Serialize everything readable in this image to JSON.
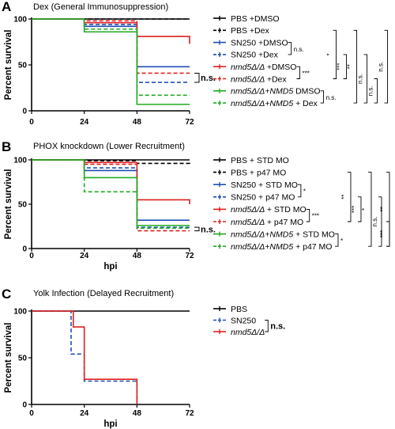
{
  "panels": [
    {
      "letter": "A",
      "title": "Dex (General Immunosuppression)",
      "xlabel": "",
      "ylabel": "Percent survival",
      "ns_label": "n.s.",
      "legend": [
        {
          "label": "PBS +DMSO"
        },
        {
          "label": "PBS +Dex"
        },
        {
          "label": "SN250 +DMSO"
        },
        {
          "label": "SN250 +Dex"
        },
        {
          "label": "+DMSO",
          "italic_prefix": "nmd5Δ/Δ "
        },
        {
          "label": "+Dex",
          "italic_prefix": "nmd5Δ/Δ "
        },
        {
          "label": " DMSO",
          "italic_prefix": "nmd5Δ/Δ+NMD5"
        },
        {
          "label": " + Dex",
          "italic_prefix": "nmd5Δ/Δ+NMD5"
        }
      ],
      "brackets": [
        {
          "pair": [
            2,
            3
          ],
          "label": "n.s."
        },
        {
          "pair": [
            4,
            5
          ],
          "label": "***"
        },
        {
          "pair": [
            6,
            7
          ],
          "label": "n.s."
        },
        {
          "pair": [
            1,
            5
          ],
          "label": "*"
        },
        {
          "pair": [
            3,
            5
          ],
          "label": "***"
        },
        {
          "pair": [
            1,
            7
          ],
          "label": "**"
        },
        {
          "pair": [
            3,
            7
          ],
          "label": "n.s."
        },
        {
          "pair": [
            5,
            7
          ],
          "label": "n.s."
        },
        {
          "pair": [
            1,
            7
          ],
          "label": "n.s."
        }
      ]
    },
    {
      "letter": "B",
      "title": "PHOX knockdown (Lower Recruitment)",
      "xlabel": "hpi",
      "ylabel": "Percent survival",
      "ns_label": "n.s.",
      "legend": [
        {
          "label": "PBS + STD MO"
        },
        {
          "label": "PBS + p47 MO"
        },
        {
          "label": "SN250 + STD MO"
        },
        {
          "label": "SN250 + p47 MO"
        },
        {
          "label": "+ STD MO",
          "italic_prefix": "nmd5Δ/Δ "
        },
        {
          "label": "+ p47 MO",
          "italic_prefix": "nmd5Δ/Δ "
        },
        {
          "label": " + STD MO",
          "italic_prefix": "nmd5Δ/Δ+NMD5"
        },
        {
          "label": " + p47 MO",
          "italic_prefix": "nmd5Δ/Δ+NMD5"
        }
      ],
      "brackets": [
        {
          "pair": [
            2,
            3
          ],
          "label": "*"
        },
        {
          "pair": [
            4,
            5
          ],
          "label": "***"
        },
        {
          "pair": [
            6,
            7
          ],
          "label": "*"
        },
        {
          "pair": [
            1,
            5
          ],
          "label": "**"
        },
        {
          "pair": [
            3,
            5
          ],
          "label": "***"
        },
        {
          "pair": [
            1,
            7
          ],
          "label": "*"
        },
        {
          "pair": [
            3,
            7
          ],
          "label": "n.s."
        },
        {
          "pair": [
            5,
            7
          ],
          "label": "***"
        },
        {
          "pair": [
            1,
            7
          ],
          "label": "**"
        }
      ]
    },
    {
      "letter": "C",
      "title": "Yolk Infection (Delayed Recruitment)",
      "xlabel": "hpi",
      "ylabel": "Percent survival",
      "ns_label": "",
      "legend": [
        {
          "label": "PBS"
        },
        {
          "label": "SN250"
        },
        {
          "label": "",
          "italic_prefix": "nmd5Δ/Δ"
        }
      ],
      "brackets": [
        {
          "pair": [
            1,
            2
          ],
          "label": "n.s."
        }
      ]
    }
  ],
  "chart_data": [
    {
      "type": "line",
      "step": true,
      "title": "Dex (General Immunosuppression)",
      "xlabel": "",
      "ylabel": "Percent survival",
      "xlim": [
        0,
        72
      ],
      "ylim": [
        0,
        100
      ],
      "xticks": [
        0,
        24,
        48,
        72
      ],
      "yticks": [
        0,
        50,
        100
      ],
      "series": [
        {
          "name": "PBS +DMSO",
          "color": "#000000",
          "dashed": false,
          "x": [
            0,
            72
          ],
          "y": [
            100,
            100
          ]
        },
        {
          "name": "PBS +Dex",
          "color": "#000000",
          "dashed": true,
          "x": [
            0,
            72
          ],
          "y": [
            100,
            100
          ]
        },
        {
          "name": "SN250 +DMSO",
          "color": "#1f4fb4",
          "dashed": false,
          "x": [
            0,
            24,
            48,
            72
          ],
          "y": [
            100,
            92,
            48,
            48
          ]
        },
        {
          "name": "SN250 +Dex",
          "color": "#1f4fb4",
          "dashed": true,
          "x": [
            0,
            24,
            48,
            72
          ],
          "y": [
            100,
            94,
            31,
            31
          ]
        },
        {
          "name": "nmd5Δ/Δ +DMSO",
          "color": "#e02020",
          "dashed": false,
          "x": [
            0,
            24,
            48,
            72
          ],
          "y": [
            100,
            96,
            81,
            73
          ]
        },
        {
          "name": "nmd5Δ/Δ +Dex",
          "color": "#e02020",
          "dashed": true,
          "x": [
            0,
            24,
            48,
            72
          ],
          "y": [
            100,
            98,
            41,
            41
          ]
        },
        {
          "name": "nmd5Δ/Δ+NMD5 DMSO",
          "color": "#22aa22",
          "dashed": false,
          "x": [
            0,
            24,
            48,
            72
          ],
          "y": [
            100,
            86,
            7,
            7
          ]
        },
        {
          "name": "nmd5Δ/Δ+NMD5 + Dex",
          "color": "#22aa22",
          "dashed": true,
          "x": [
            0,
            24,
            48,
            72
          ],
          "y": [
            100,
            89,
            17,
            17
          ]
        }
      ]
    },
    {
      "type": "line",
      "step": true,
      "title": "PHOX knockdown (Lower Recruitment)",
      "xlabel": "hpi",
      "ylabel": "Percent survival",
      "xlim": [
        0,
        72
      ],
      "ylim": [
        0,
        100
      ],
      "xticks": [
        0,
        24,
        48,
        72
      ],
      "yticks": [
        0,
        50,
        100
      ],
      "series": [
        {
          "name": "PBS + STD MO",
          "color": "#000000",
          "dashed": false,
          "x": [
            0,
            72
          ],
          "y": [
            100,
            100
          ]
        },
        {
          "name": "PBS + p47 MO",
          "color": "#000000",
          "dashed": true,
          "x": [
            0,
            24,
            48,
            72
          ],
          "y": [
            100,
            99,
            96,
            95
          ]
        },
        {
          "name": "SN250 + STD MO",
          "color": "#1f4fb4",
          "dashed": false,
          "x": [
            0,
            24,
            48,
            72
          ],
          "y": [
            100,
            88,
            32,
            32
          ]
        },
        {
          "name": "SN250 + p47 MO",
          "color": "#1f4fb4",
          "dashed": true,
          "x": [
            0,
            24,
            48,
            72
          ],
          "y": [
            100,
            91,
            24,
            24
          ]
        },
        {
          "name": "nmd5Δ/Δ + STD MO",
          "color": "#e02020",
          "dashed": false,
          "x": [
            0,
            24,
            48,
            72
          ],
          "y": [
            100,
            97,
            55,
            50
          ]
        },
        {
          "name": "nmd5Δ/Δ + p47 MO",
          "color": "#e02020",
          "dashed": true,
          "x": [
            0,
            24,
            48,
            72
          ],
          "y": [
            100,
            95,
            20,
            20
          ]
        },
        {
          "name": "nmd5Δ/Δ+NMD5 + STD MO",
          "color": "#22aa22",
          "dashed": false,
          "x": [
            0,
            24,
            48,
            72
          ],
          "y": [
            100,
            80,
            26,
            26
          ]
        },
        {
          "name": "nmd5Δ/Δ+NMD5 + p47 MO",
          "color": "#22aa22",
          "dashed": true,
          "x": [
            0,
            24,
            48,
            72
          ],
          "y": [
            100,
            64,
            23,
            23
          ]
        }
      ]
    },
    {
      "type": "line",
      "step": true,
      "title": "Yolk Infection (Delayed Recruitment)",
      "xlabel": "hpi",
      "ylabel": "Percent survival",
      "xlim": [
        0,
        72
      ],
      "ylim": [
        0,
        100
      ],
      "xticks": [
        0,
        24,
        48,
        72
      ],
      "yticks": [
        0,
        50,
        100
      ],
      "series": [
        {
          "name": "PBS",
          "color": "#000000",
          "dashed": false,
          "x": [
            0,
            72
          ],
          "y": [
            100,
            100
          ]
        },
        {
          "name": "SN250",
          "color": "#1f4fb4",
          "dashed": true,
          "x": [
            0,
            12,
            18,
            24,
            48
          ],
          "y": [
            100,
            100,
            54,
            25,
            0
          ]
        },
        {
          "name": "nmd5Δ/Δ",
          "color": "#e02020",
          "dashed": false,
          "x": [
            0,
            14,
            19,
            24,
            48
          ],
          "y": [
            100,
            100,
            83,
            27,
            0
          ]
        }
      ]
    }
  ]
}
